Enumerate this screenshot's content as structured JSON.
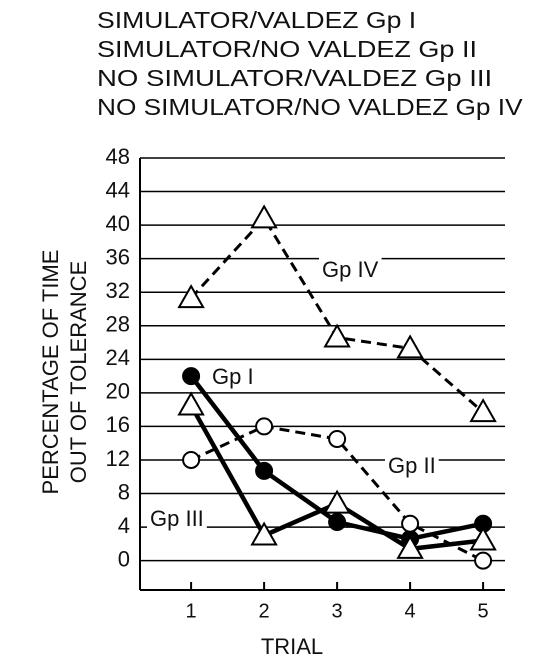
{
  "chart_data": {
    "type": "line",
    "xlabel": "TRIAL",
    "ylabel": [
      "PERCENTAGE OF TIME",
      "OUT OF TOLERANCE"
    ],
    "x": [
      1,
      2,
      3,
      4,
      5
    ],
    "xlim": [
      0.3,
      5.3
    ],
    "xticks": [
      1,
      2,
      3,
      4,
      5
    ],
    "ylim": [
      -3.5,
      48
    ],
    "yticks": [
      0,
      4,
      8,
      12,
      16,
      20,
      24,
      28,
      32,
      36,
      40,
      44,
      48
    ],
    "grid": true,
    "series": [
      {
        "name": "SIMULATOR/VALDEZ Gp I",
        "color": "#000",
        "marker": "filled-circle",
        "dashed": false,
        "values": [
          22,
          10.7,
          4.6,
          2.6,
          4.4
        ]
      },
      {
        "name": "SIMULATOR/NO VALDEZ Gp II",
        "color": "#000",
        "marker": "open-circle",
        "dashed": true,
        "values": [
          12,
          16,
          14.5,
          4.4,
          0
        ]
      },
      {
        "name": "NO SIMULATOR/VALDEZ Gp III",
        "color": "#000",
        "marker": "open-triangle",
        "dashed": false,
        "values": [
          18.5,
          3,
          6.8,
          1.4,
          2.4
        ]
      },
      {
        "name": "NO SIMULATOR/NO VALDEZ Gp IV",
        "color": "#000",
        "marker": "open-triangle",
        "dashed": true,
        "values": [
          31.3,
          40.8,
          26.6,
          25.3,
          17.7
        ]
      }
    ],
    "annotations": [
      "Gp I",
      "Gp II",
      "Gp III",
      "Gp IV"
    ]
  }
}
